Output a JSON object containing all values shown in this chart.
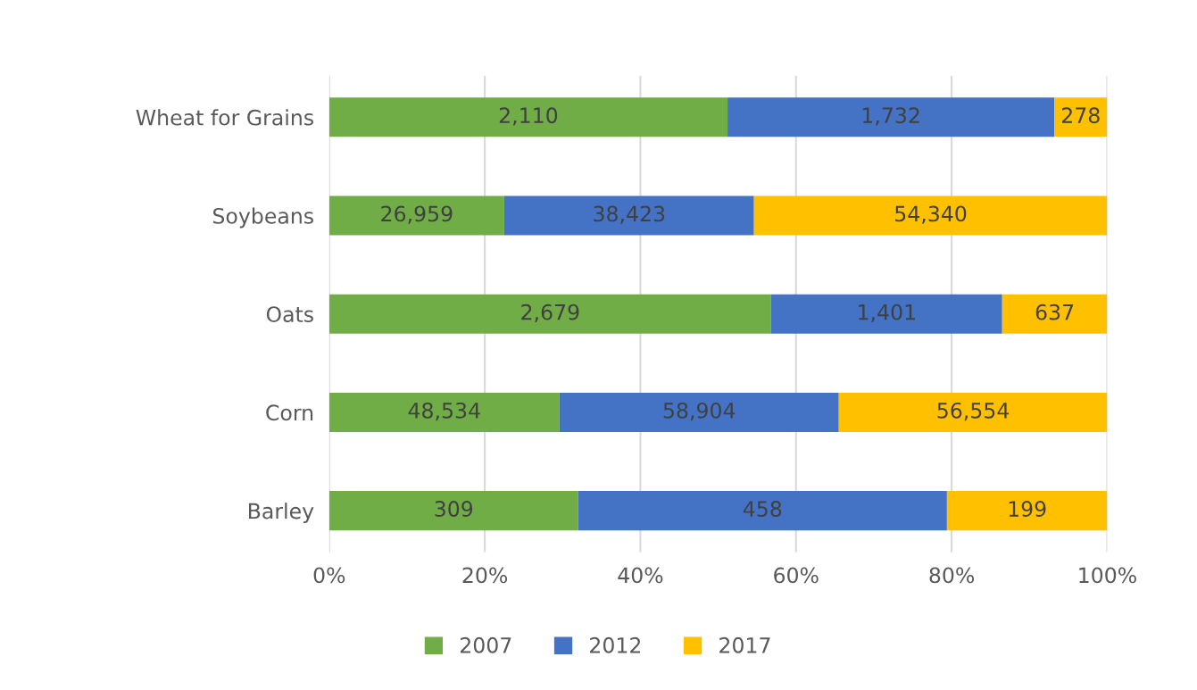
{
  "chart_data": {
    "type": "bar",
    "orientation": "horizontal",
    "stacked": true,
    "categories": [
      "Wheat for Grains",
      "Soybeans",
      "Oats",
      "Corn",
      "Barley"
    ],
    "series": [
      {
        "name": "2007",
        "color": "#70ad47",
        "values": [
          51.2,
          22.5,
          56.8,
          29.6,
          32.0
        ]
      },
      {
        "name": "2012",
        "color": "#4472c4",
        "values": [
          42.0,
          32.1,
          29.7,
          35.9,
          47.4
        ]
      },
      {
        "name": "2017",
        "color": "#ffc000",
        "values": [
          6.8,
          45.4,
          13.5,
          34.5,
          20.6
        ]
      }
    ],
    "annotations": [
      "2,110",
      "1,732",
      "278",
      "26,959",
      "38,423",
      "54,340",
      "2,679",
      "1,401",
      "637",
      "48,534",
      "58,904",
      "56,554",
      "309",
      "458",
      "199"
    ],
    "xlim": [
      0,
      100
    ],
    "xticks": [
      {
        "value": 0,
        "label": "0%"
      },
      {
        "value": 20,
        "label": "20%"
      },
      {
        "value": 40,
        "label": "40%"
      },
      {
        "value": 60,
        "label": "60%"
      },
      {
        "value": 80,
        "label": "80%"
      },
      {
        "value": 100,
        "label": "100%"
      }
    ],
    "grid": "x",
    "legend": "bottom"
  }
}
